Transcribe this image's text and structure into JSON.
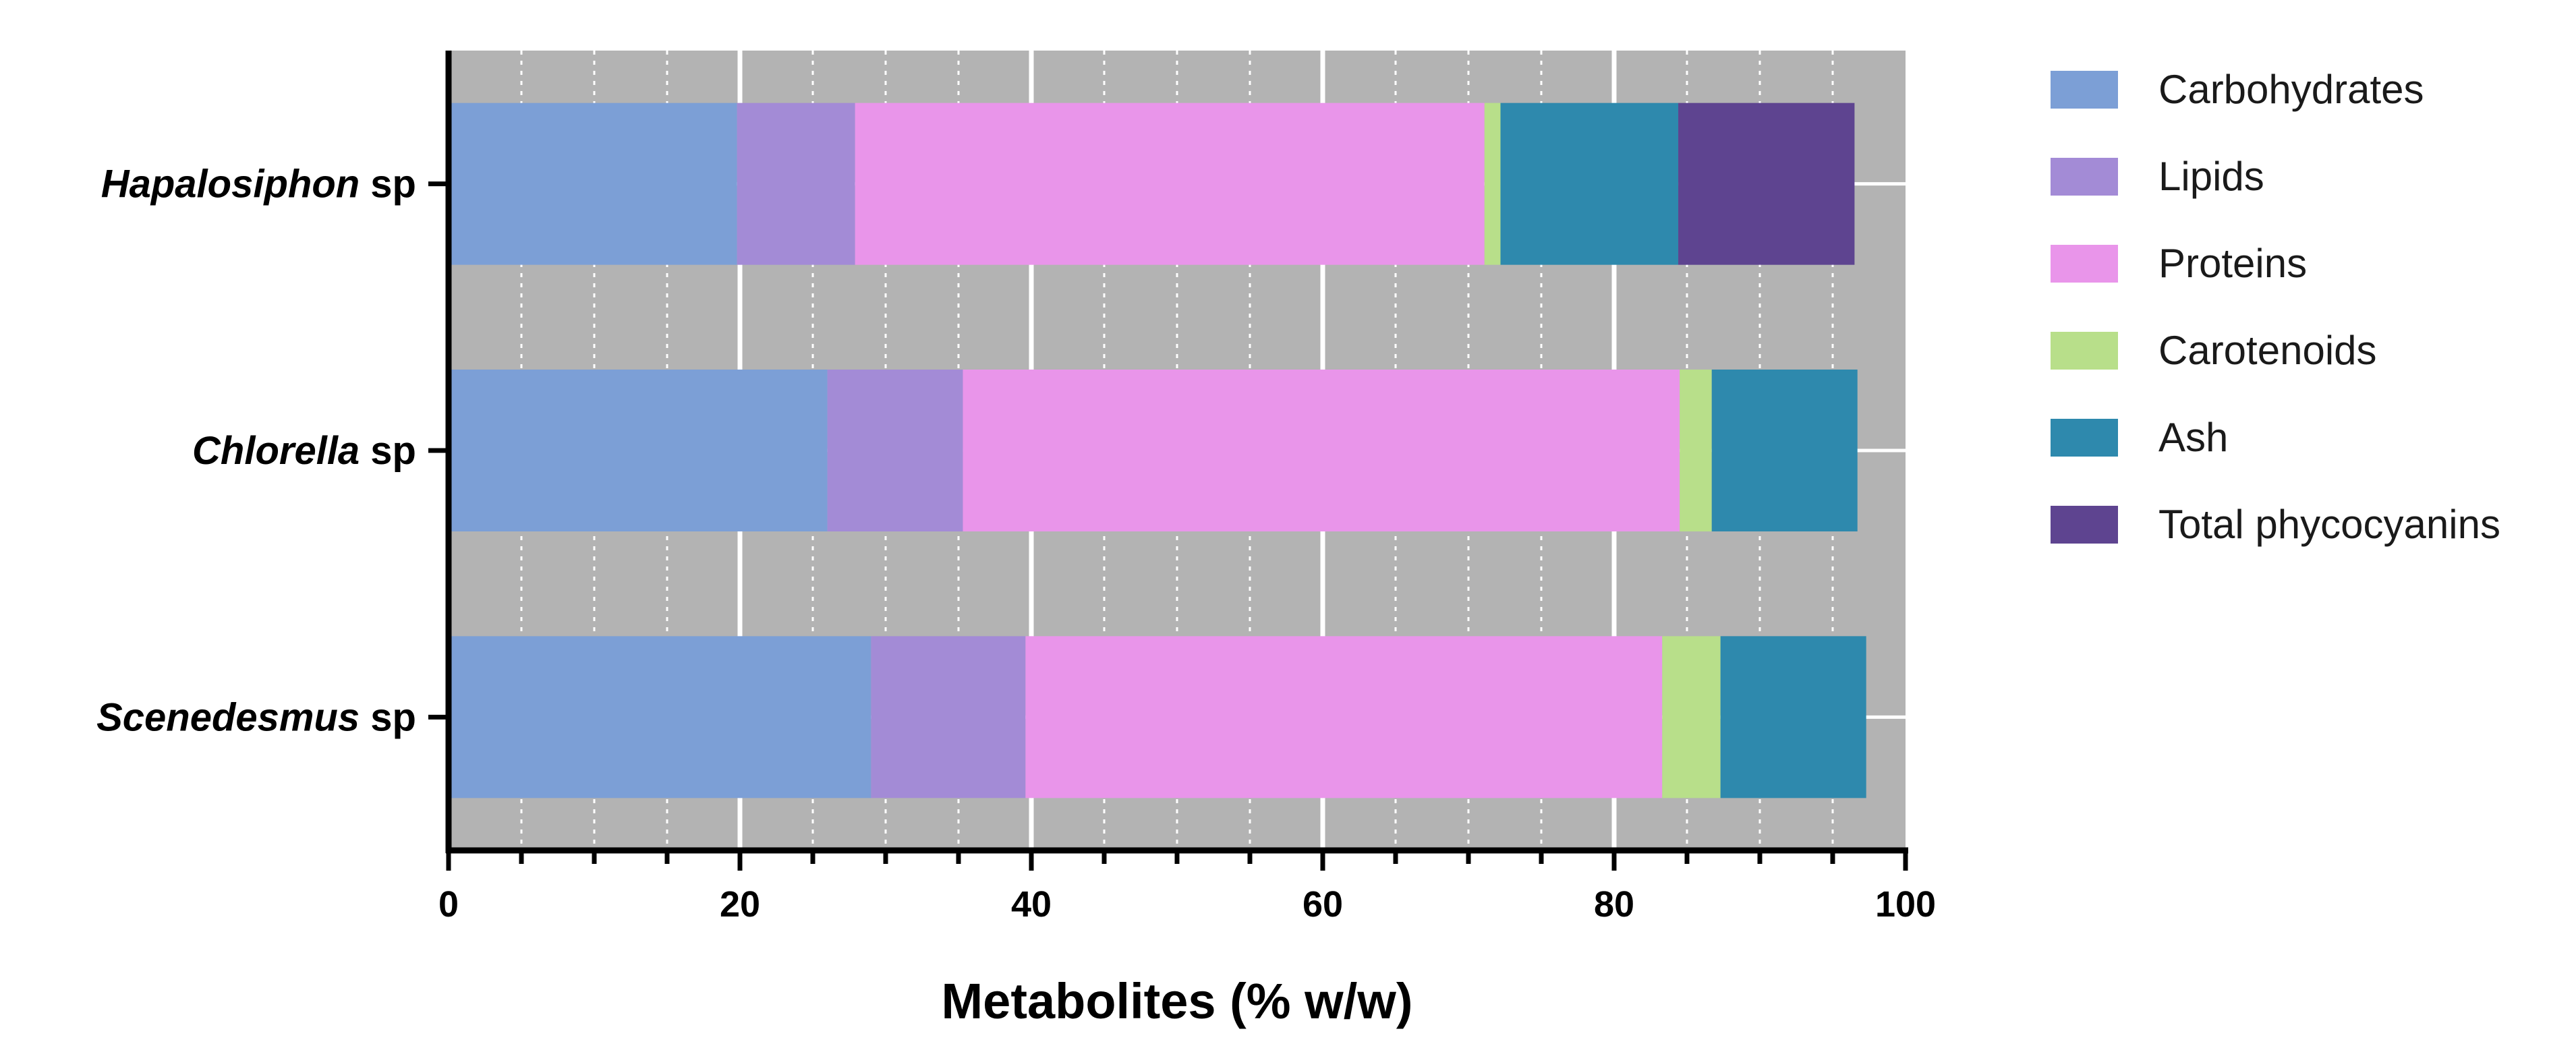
{
  "chart_data": {
    "type": "bar",
    "orientation": "horizontal",
    "stacked": true,
    "title": "",
    "xlabel": "Metabolites (% w/w)",
    "ylabel": "",
    "xlim": [
      0,
      100
    ],
    "x_ticks": [
      0,
      20,
      40,
      60,
      80,
      100
    ],
    "grid": true,
    "legend_position": "right",
    "categories": [
      {
        "italic": "Hapalosiphon",
        "suffix": " sp"
      },
      {
        "italic": "Chlorella",
        "suffix": " sp"
      },
      {
        "italic": "Scenedesmus",
        "suffix": " sp"
      }
    ],
    "series": [
      {
        "name": "Carbohydrates",
        "color": "#7c9fd6",
        "values": [
          19.8,
          26.0,
          29.0
        ]
      },
      {
        "name": "Lipids",
        "color": "#a38bd6",
        "values": [
          8.1,
          9.3,
          10.6
        ]
      },
      {
        "name": "Proteins",
        "color": "#e995ea",
        "values": [
          43.2,
          49.2,
          43.7
        ]
      },
      {
        "name": "Carotenoids",
        "color": "#b8df8a",
        "values": [
          1.1,
          2.2,
          4.0
        ]
      },
      {
        "name": "Ash",
        "color": "#2e89ad",
        "values": [
          12.2,
          10.0,
          10.0
        ]
      },
      {
        "name": "Total phycocyanins",
        "color": "#5e4490",
        "values": [
          12.1,
          0,
          0
        ]
      }
    ]
  }
}
